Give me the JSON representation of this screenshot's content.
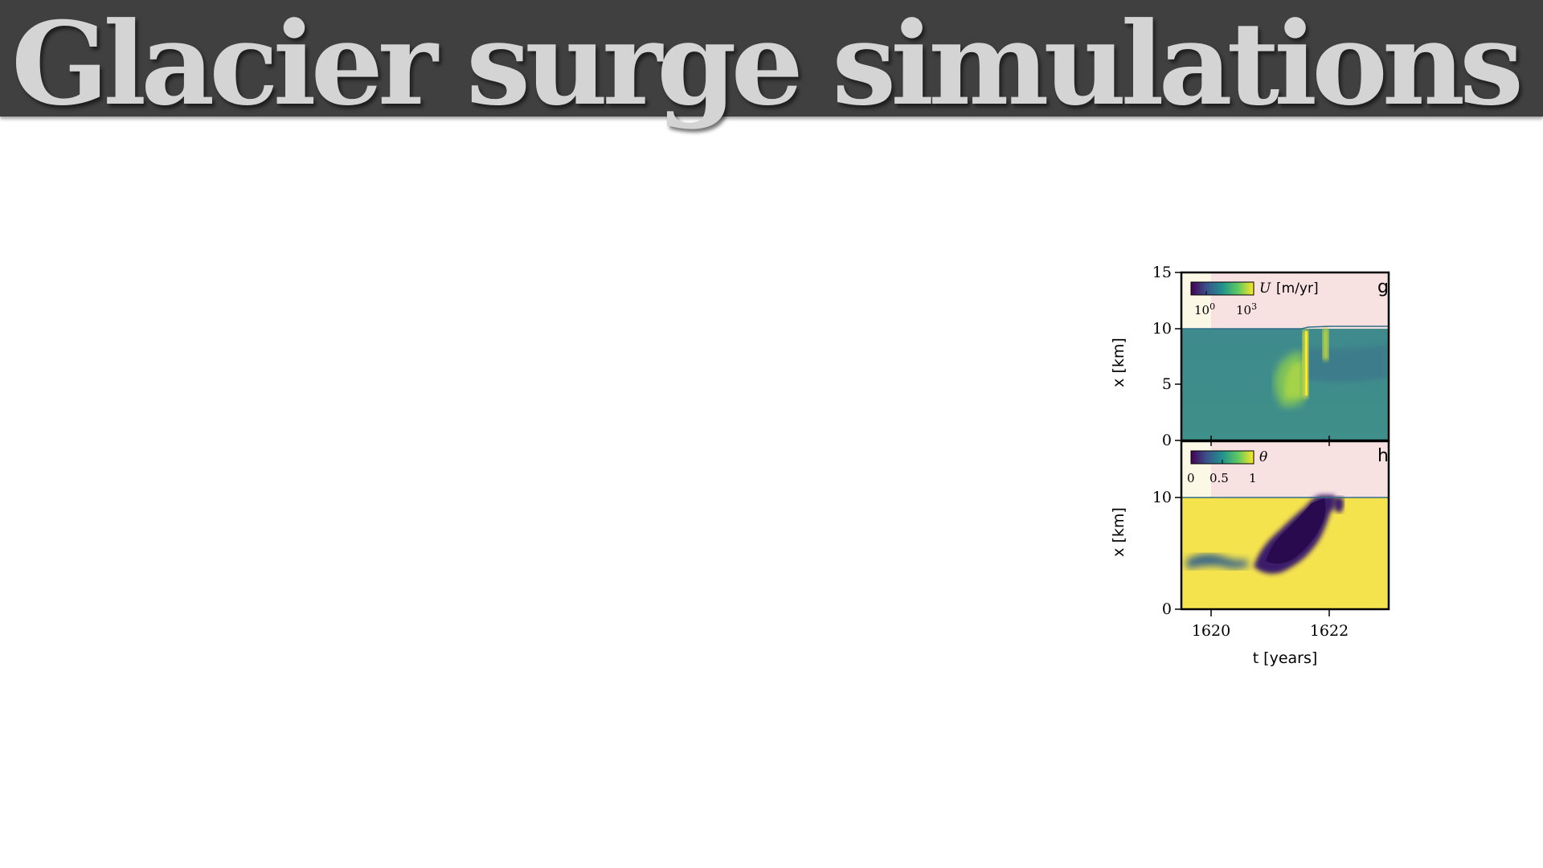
{
  "slide": {
    "title": "Glacier surge simulations"
  },
  "figure": {
    "panel_g": {
      "letter": "g",
      "ylabel": "x [km]",
      "yticks": [
        "15",
        "10",
        "5",
        "0"
      ],
      "colorbar": {
        "label_var": "U",
        "label_unit": "[m/yr]",
        "tick1_base": "10",
        "tick1_exp": "0",
        "tick2_base": "10",
        "tick2_exp": "3"
      }
    },
    "panel_h": {
      "letter": "h",
      "ylabel": "x [km]",
      "yticks": [
        "10",
        "0"
      ],
      "colorbar": {
        "label_var": "θ",
        "ticks": [
          "0",
          "0.5",
          "1"
        ]
      }
    },
    "xaxis": {
      "label": "t [years]",
      "ticks": [
        "1620",
        "1622"
      ]
    }
  },
  "colors": {
    "title_bar": "#404040",
    "title_text": "#d4d4d4",
    "above_glacier": "#f7e1e1",
    "early_band": "#fbf8e6",
    "viridis_low": "#440154",
    "viridis_mid": "#2a788e",
    "viridis_high": "#fde725"
  },
  "chart_data": [
    {
      "type": "heatmap",
      "panel": "g",
      "xlabel": "t [years]",
      "ylabel": "x [km]",
      "xticks": [
        1620,
        1622
      ],
      "yticks": [
        0,
        5,
        10,
        15
      ],
      "ylim": [
        0,
        15
      ],
      "colorbar": {
        "var": "U",
        "unit": "m/yr",
        "scale": "log",
        "ticks": [
          "10^0",
          "10^3"
        ],
        "colormap": "viridis"
      },
      "glacier_top_km": 10.2
    },
    {
      "type": "heatmap",
      "panel": "h",
      "xlabel": "t [years]",
      "ylabel": "x [km]",
      "xticks": [
        1620,
        1622
      ],
      "yticks": [
        0,
        10
      ],
      "colorbar": {
        "var": "θ",
        "ticks": [
          0,
          0.5,
          1
        ],
        "colormap": "viridis"
      },
      "glacier_top_km": 10.2
    }
  ]
}
